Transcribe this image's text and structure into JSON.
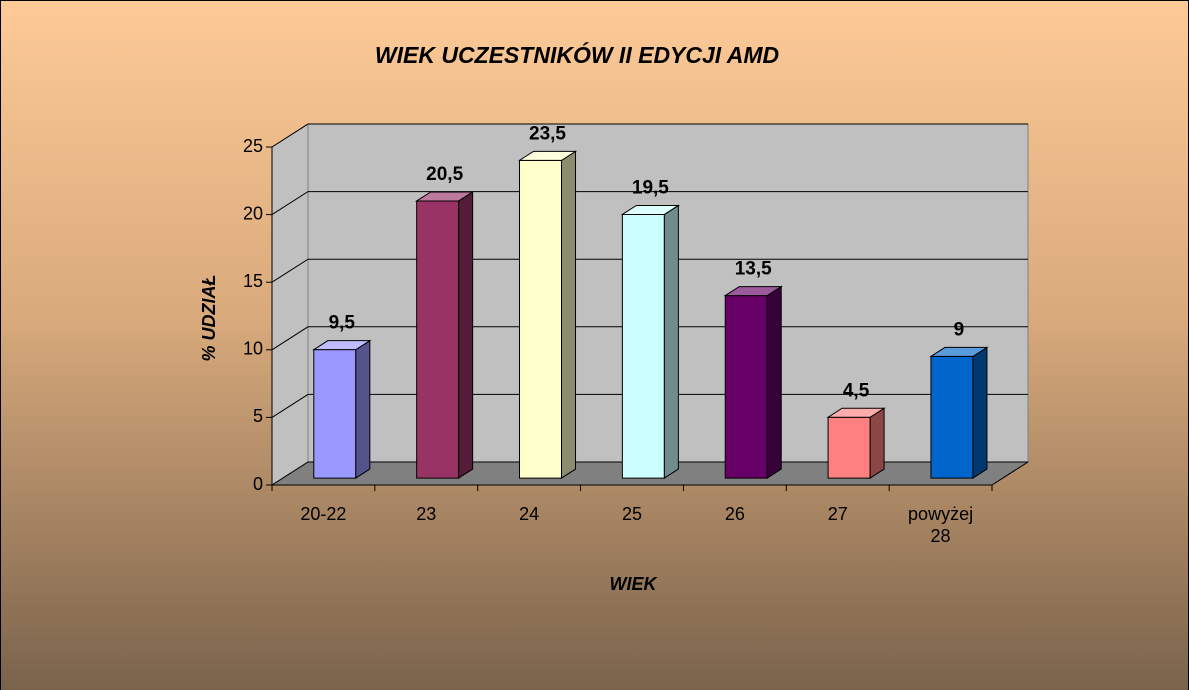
{
  "chart_data": {
    "type": "bar3d",
    "title": "WIEK UCZESTNIKÓW II EDYCJI AMD",
    "x_label": "WIEK",
    "y_label": "% UDZIAŁ",
    "categories": [
      "20-22",
      "23",
      "24",
      "25",
      "26",
      "27",
      "powyżej 28"
    ],
    "values": [
      9.5,
      20.5,
      23.5,
      19.5,
      13.5,
      4.5,
      9
    ],
    "value_labels": [
      "9,5",
      "20,5",
      "23,5",
      "19,5",
      "13,5",
      "4,5",
      "9"
    ],
    "colors": [
      "#9999ff",
      "#993366",
      "#ffffcc",
      "#ccffff",
      "#660066",
      "#ff8080",
      "#0066cc"
    ],
    "ylim": [
      0,
      25
    ],
    "yticks": [
      0,
      5,
      10,
      15,
      20,
      25
    ],
    "grid": true
  }
}
